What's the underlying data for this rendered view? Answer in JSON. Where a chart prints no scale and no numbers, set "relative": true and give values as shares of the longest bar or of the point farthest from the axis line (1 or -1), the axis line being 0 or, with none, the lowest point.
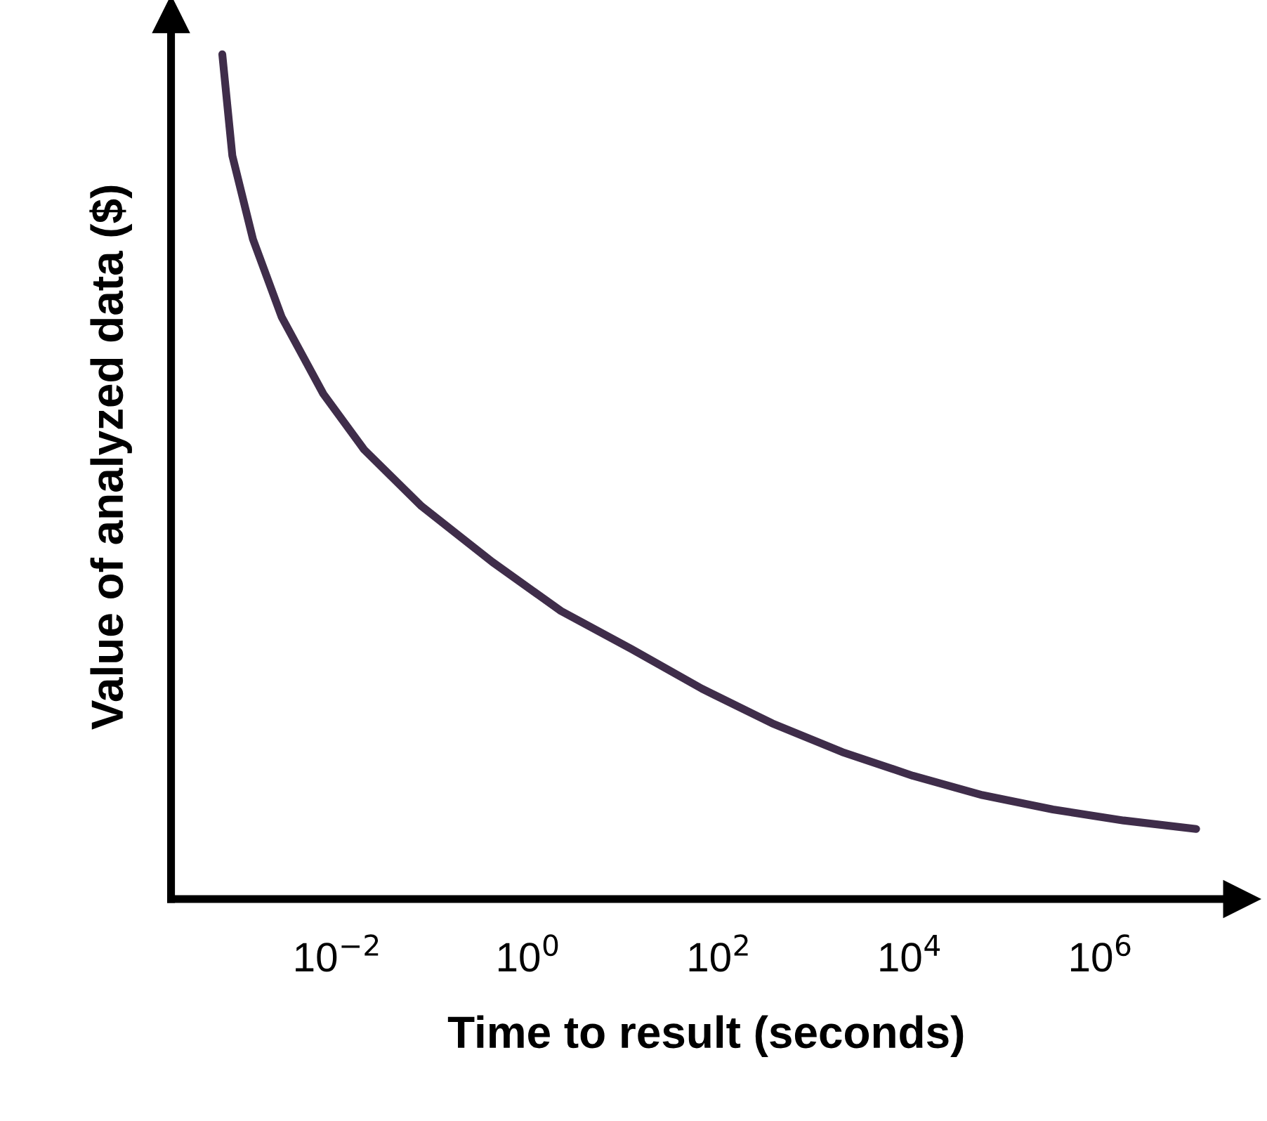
{
  "chart_data": {
    "type": "line",
    "xlabel": "Time to result (seconds)",
    "ylabel": "Value of analyzed data ($)",
    "relative": true,
    "log": "x",
    "xlim": [
      0.00018,
      30000000.0
    ],
    "xticks": [
      {
        "value": 0.01,
        "label": "10$^{−2}$"
      },
      {
        "value": 1,
        "label": "10$^{0}$"
      },
      {
        "value": 100,
        "label": "10$^{2}$"
      },
      {
        "value": 10000,
        "label": "10$^{4}$"
      },
      {
        "value": 1000000,
        "label": "10$^{6}$"
      }
    ],
    "tick_labels": "x",
    "marker": "none",
    "line_style": "solid",
    "series": [
      {
        "color": "#3f2d4a",
        "x": [
          0.00062,
          0.00079,
          0.0013,
          0.0026,
          0.0071,
          0.019,
          0.076,
          0.42,
          2.2,
          12,
          66,
          360,
          1950,
          10700,
          57500,
          316000,
          1740000,
          10000000
        ],
        "values": [
          1.0,
          0.88,
          0.781,
          0.689,
          0.598,
          0.532,
          0.465,
          0.399,
          0.341,
          0.296,
          0.249,
          0.208,
          0.174,
          0.146,
          0.123,
          0.106,
          0.093,
          0.083
        ]
      }
    ]
  }
}
